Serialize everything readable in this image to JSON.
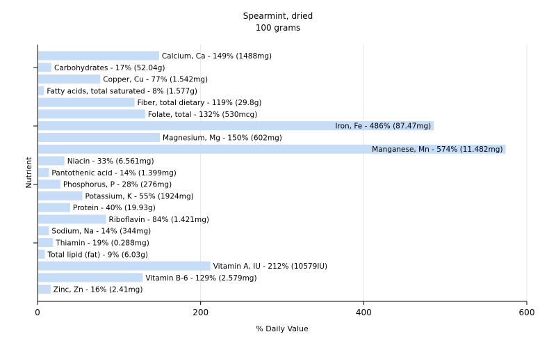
{
  "chart_data": {
    "type": "bar",
    "orientation": "horizontal",
    "title": "Spearmint, dried",
    "subtitle": "100 grams",
    "xlabel": "% Daily Value",
    "ylabel": "Nutrient",
    "xlim": [
      0,
      600
    ],
    "xticks": [
      0,
      200,
      400,
      600
    ],
    "grid": true,
    "bar_color": "#c6dcf7",
    "grid_color": "#e6e6e6",
    "categories": [
      "Calcium, Ca",
      "Carbohydrates",
      "Copper, Cu",
      "Fatty acids, total saturated",
      "Fiber, total dietary",
      "Folate, total",
      "Iron, Fe",
      "Magnesium, Mg",
      "Manganese, Mn",
      "Niacin",
      "Pantothenic acid",
      "Phosphorus, P",
      "Potassium, K",
      "Protein",
      "Riboflavin",
      "Sodium, Na",
      "Thiamin",
      "Total lipid (fat)",
      "Vitamin A, IU",
      "Vitamin B-6",
      "Zinc, Zn"
    ],
    "values": [
      149,
      17,
      77,
      8,
      119,
      132,
      486,
      150,
      574,
      33,
      14,
      28,
      55,
      40,
      84,
      14,
      19,
      9,
      212,
      129,
      16
    ],
    "labels": [
      "Calcium, Ca - 149% (1488mg)",
      "Carbohydrates - 17% (52.04g)",
      "Copper, Cu - 77% (1.542mg)",
      "Fatty acids, total saturated - 8% (1.577g)",
      "Fiber, total dietary - 119% (29.8g)",
      "Folate, total - 132% (530mcg)",
      "Iron, Fe - 486% (87.47mg)",
      "Magnesium, Mg - 150% (602mg)",
      "Manganese, Mn - 574% (11.482mg)",
      "Niacin - 33% (6.561mg)",
      "Pantothenic acid - 14% (1.399mg)",
      "Phosphorus, P - 28% (276mg)",
      "Potassium, K - 55% (1924mg)",
      "Protein - 40% (19.93g)",
      "Riboflavin - 84% (1.421mg)",
      "Sodium, Na - 14% (344mg)",
      "Thiamin - 19% (0.288mg)",
      "Total lipid (fat) - 9% (6.03g)",
      "Vitamin A, IU - 212% (10579IU)",
      "Vitamin B-6 - 129% (2.579mg)",
      "Zinc, Zn - 16% (2.41mg)"
    ]
  }
}
